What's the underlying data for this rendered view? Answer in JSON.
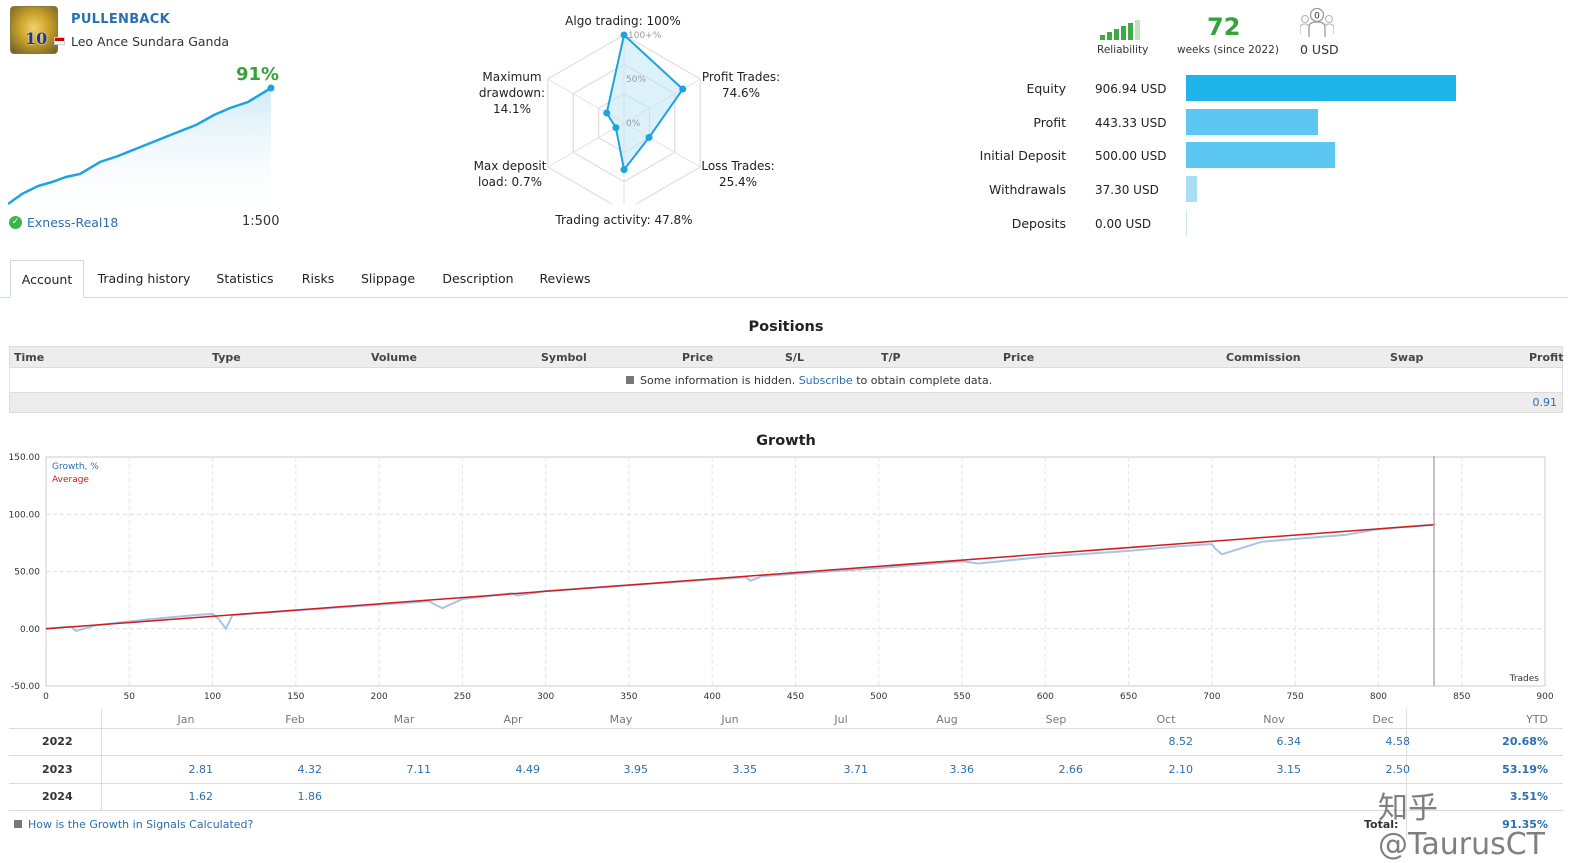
{
  "header": {
    "signal_name": "PULLENBACK",
    "author": "Leo Ance Sundara Ganda",
    "avatar_digits": "10",
    "growth_pct": "91%",
    "broker": "Exness-Real18",
    "leverage": "1:500"
  },
  "radar": {
    "algo_trading": "Algo trading: 100%",
    "profit_trades": [
      "Profit Trades:",
      "74.6%"
    ],
    "loss_trades": [
      "Loss Trades:",
      "25.4%"
    ],
    "trading_activity": "Trading activity: 47.8%",
    "max_deposit_load": [
      "Max deposit",
      "load: 0.7%"
    ],
    "max_drawdown": [
      "Maximum",
      "drawdown:",
      "14.1%"
    ],
    "rings": [
      "100+%",
      "50%",
      "0%"
    ],
    "values": {
      "algo_trading": 100,
      "profit_trades": 74.6,
      "loss_trades": 25.4,
      "trading_activity": 47.8,
      "max_deposit_load": 0.7,
      "max_drawdown": 14.1
    }
  },
  "stats": {
    "reliability_label": "Reliability",
    "weeks_value": "72",
    "weeks_label": "weeks (since 2022)",
    "subscribers_count": "0",
    "subscribers_value": "0 USD"
  },
  "finance": [
    {
      "label": "Equity",
      "value": "906.94 USD",
      "amount": 906.94,
      "color": "#1fb5ea"
    },
    {
      "label": "Profit",
      "value": "443.33 USD",
      "amount": 443.33,
      "color": "#5cc8f1"
    },
    {
      "label": "Initial Deposit",
      "value": "500.00 USD",
      "amount": 500.0,
      "color": "#5cc8f1"
    },
    {
      "label": "Withdrawals",
      "value": "37.30 USD",
      "amount": 37.3,
      "color": "#a8def6"
    },
    {
      "label": "Deposits",
      "value": "0.00 USD",
      "amount": 0.0,
      "color": "#a8def6"
    }
  ],
  "tabs": [
    "Account",
    "Trading history",
    "Statistics",
    "Risks",
    "Slippage",
    "Description",
    "Reviews"
  ],
  "positions": {
    "title": "Positions",
    "columns": [
      "Time",
      "Type",
      "Volume",
      "Symbol",
      "Price",
      "S/L",
      "T/P",
      "Price",
      "Commission",
      "Swap",
      "Profit"
    ],
    "hidden_pre": "Some information is hidden.",
    "hidden_link": "Subscribe",
    "hidden_post": "to obtain complete data.",
    "total_profit": "0.91"
  },
  "growth": {
    "title": "Growth",
    "legend_growth": "Growth, %",
    "legend_average": "Average",
    "x_axis_label": "Trades"
  },
  "chart_data": {
    "type": "line",
    "title": "Growth",
    "xlabel": "Trades",
    "ylabel": "",
    "xlim": [
      0,
      900
    ],
    "ylim": [
      -50,
      150
    ],
    "y_ticks": [
      "150.00",
      "100.00",
      "50.00",
      "0.00",
      "-50.00"
    ],
    "x_ticks": [
      "0",
      "50",
      "100",
      "150",
      "200",
      "250",
      "300",
      "350",
      "400",
      "450",
      "500",
      "550",
      "600",
      "650",
      "700",
      "750",
      "800",
      "850",
      "900"
    ],
    "series": [
      {
        "name": "Growth, %",
        "color": "#a9c3e6",
        "x": [
          0,
          15,
          18,
          30,
          60,
          90,
          100,
          104,
          108,
          112,
          150,
          200,
          230,
          235,
          238,
          250,
          280,
          283,
          300,
          350,
          400,
          420,
          423,
          430,
          450,
          500,
          550,
          560,
          600,
          650,
          680,
          700,
          702,
          706,
          730,
          780,
          800,
          834
        ],
        "y": [
          0,
          2,
          -2,
          3,
          8,
          12,
          13,
          8,
          0,
          12,
          16,
          21,
          24,
          20,
          18,
          26,
          31,
          29,
          33,
          38,
          43,
          45,
          42,
          46,
          48,
          53,
          59,
          57,
          63,
          68,
          72,
          74,
          70,
          65,
          76,
          82,
          87,
          91
        ]
      },
      {
        "name": "Average",
        "color": "#d01c1c",
        "x": [
          0,
          834
        ],
        "y": [
          0,
          91
        ]
      }
    ]
  },
  "monthly": {
    "months": [
      "Jan",
      "Feb",
      "Mar",
      "Apr",
      "May",
      "Jun",
      "Jul",
      "Aug",
      "Sep",
      "Oct",
      "Nov",
      "Dec"
    ],
    "ytd_label": "YTD",
    "rows": [
      {
        "year": "2022",
        "values": [
          "",
          "",
          "",
          "",
          "",
          "",
          "",
          "",
          "",
          "8.52",
          "6.34",
          "4.58"
        ],
        "ytd": "20.68%"
      },
      {
        "year": "2023",
        "values": [
          "2.81",
          "4.32",
          "7.11",
          "4.49",
          "3.95",
          "3.35",
          "3.71",
          "3.36",
          "2.66",
          "2.10",
          "3.15",
          "2.50"
        ],
        "ytd": "53.19%"
      },
      {
        "year": "2024",
        "values": [
          "1.62",
          "1.86",
          "",
          "",
          "",
          "",
          "",
          "",
          "",
          "",
          "",
          ""
        ],
        "ytd": "3.51%"
      }
    ],
    "total_label": "Total:",
    "total_value": "91.35%"
  },
  "footer": {
    "howto_link": "How is the Growth in Signals Calculated?",
    "watermark": "知乎 @TaurusCT"
  }
}
